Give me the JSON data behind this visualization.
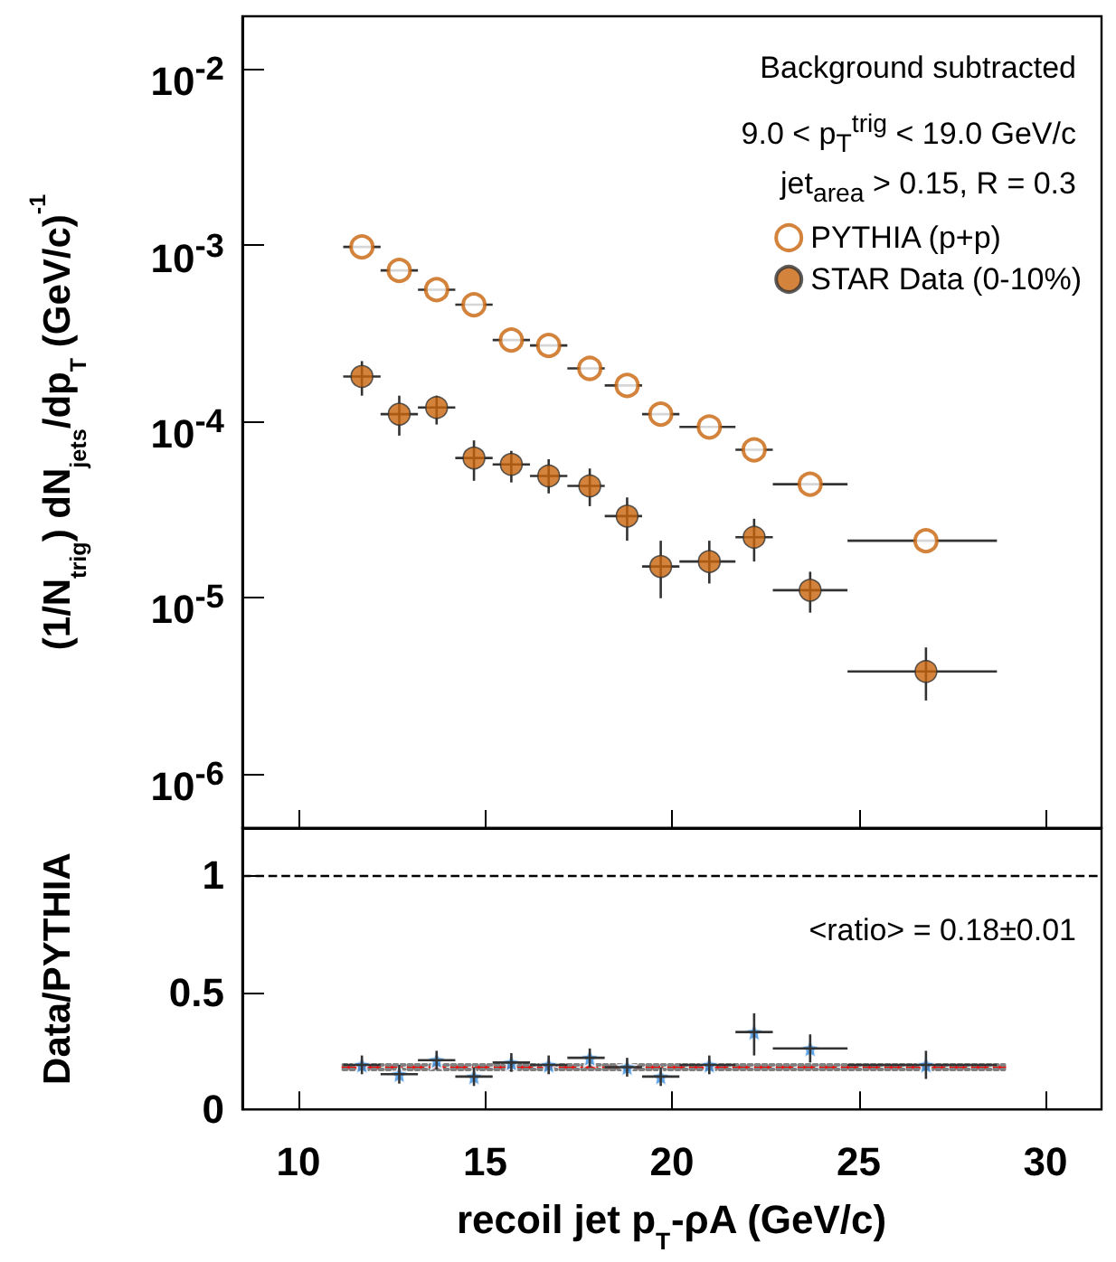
{
  "chart_data": [
    {
      "type": "scatter",
      "ylabel": "(1/N$_{trig}$) dN$_{jets}$/dp$_{T}$ (GeV/c)$^{-1}$",
      "annotations": [
        "Background subtracted",
        "9.0 < p$_{T}$$^{trig}$ < 19.0 GeV/c",
        "jet$_{area}$ > 0.15, R = 0.3"
      ],
      "xlim": [
        8.5,
        31.5
      ],
      "xticks": [
        10,
        15,
        20,
        25,
        30
      ],
      "ylim": [
        4.9e-07,
        0.02
      ],
      "yticks": [
        {
          "value": 1e-06,
          "label": "10$^{-6}$"
        },
        {
          "value": 1e-05,
          "label": "10$^{-5}$"
        },
        {
          "value": 0.0001,
          "label": "10$^{-4}$"
        },
        {
          "value": 0.001,
          "label": "10$^{-3}$"
        },
        {
          "value": 0.01,
          "label": "10$^{-2}$"
        }
      ],
      "log": "y",
      "tick_labels": "y",
      "legend": "top right",
      "grid": false,
      "marker": "circle",
      "x": [
        11.7,
        12.7,
        13.7,
        14.7,
        15.7,
        16.7,
        17.8,
        18.8,
        19.7,
        21.0,
        22.2,
        23.7,
        26.8
      ],
      "series": [
        {
          "name": "PYTHIA (p+p)",
          "color": "#c8640a",
          "values": [
            0.00098,
            0.00072,
            0.00056,
            0.00046,
            0.00029,
            0.00027,
            0.0002,
            0.00016,
            0.00011,
            9.3e-05,
            6.9e-05,
            4.4e-05,
            2.1e-05
          ],
          "xerrors": [
            [
              11.2,
              12.2
            ],
            [
              12.2,
              13.2
            ],
            [
              13.2,
              14.2
            ],
            [
              14.2,
              15.2
            ],
            [
              15.2,
              16.2
            ],
            [
              16.2,
              17.2
            ],
            [
              17.2,
              18.2
            ],
            [
              18.2,
              19.2
            ],
            [
              19.2,
              20.2
            ],
            [
              20.2,
              21.7
            ],
            [
              21.7,
              22.7
            ],
            [
              22.7,
              24.7
            ],
            [
              24.7,
              28.7
            ]
          ]
        },
        {
          "name": "STAR Data (0-10%)",
          "color": "#c8640a",
          "values": [
            0.00018,
            0.00011,
            0.00012,
            6.2e-05,
            5.7e-05,
            4.9e-05,
            4.3e-05,
            2.9e-05,
            1.5e-05,
            1.6e-05,
            2.2e-05,
            1.1e-05,
            3.8e-06
          ],
          "xerrors": [
            [
              11.2,
              12.2
            ],
            [
              12.2,
              13.2
            ],
            [
              13.2,
              14.2
            ],
            [
              14.2,
              15.2
            ],
            [
              15.2,
              16.2
            ],
            [
              16.2,
              17.2
            ],
            [
              17.2,
              18.2
            ],
            [
              18.2,
              19.2
            ],
            [
              19.2,
              20.2
            ],
            [
              20.2,
              21.7
            ],
            [
              21.7,
              22.7
            ],
            [
              22.7,
              24.7
            ],
            [
              24.7,
              28.7
            ]
          ],
          "errors": [
            [
              0.00014,
              0.00022
            ],
            [
              8.3e-05,
              0.00014
            ],
            [
              9.6e-05,
              0.00014
            ],
            [
              4.6e-05,
              7.8e-05
            ],
            [
              4.5e-05,
              6.8e-05
            ],
            [
              3.9e-05,
              6.1e-05
            ],
            [
              3.3e-05,
              5.4e-05
            ],
            [
              2.1e-05,
              3.7e-05
            ],
            [
              9.9e-06,
              2.1e-05
            ],
            [
              1.2e-05,
              2.1e-05
            ],
            [
              1.6e-05,
              2.8e-05
            ],
            [
              8.2e-06,
              1.4e-05
            ],
            [
              2.6e-06,
              5.2e-06
            ]
          ]
        }
      ]
    },
    {
      "type": "scatter",
      "xlabel": "recoil jet p$_{T}$-ρA (GeV/c)",
      "ylabel": "Data/PYTHIA",
      "annotations": [
        "<ratio> = 0.18±0.01"
      ],
      "xlim": [
        8.5,
        31.5
      ],
      "xticks": [
        10,
        15,
        20,
        25,
        30
      ],
      "ylim": [
        0,
        1.2
      ],
      "yticks": [
        0,
        0.5,
        1
      ],
      "grid": false,
      "legend": false,
      "ref_lines": [
        {
          "axis": "y",
          "value": 1,
          "color": "#000000",
          "line_style": "dashed"
        }
      ],
      "series": [
        {
          "color": "#3a8ee0",
          "marker": "star",
          "x": [
            11.7,
            12.7,
            13.7,
            14.7,
            15.7,
            16.7,
            17.8,
            18.8,
            19.7,
            21.0,
            22.2,
            23.7,
            26.8
          ],
          "values": [
            0.19,
            0.15,
            0.21,
            0.14,
            0.2,
            0.19,
            0.22,
            0.18,
            0.14,
            0.19,
            0.33,
            0.26,
            0.19
          ],
          "xerrors": [
            [
              11.2,
              12.2
            ],
            [
              12.2,
              13.2
            ],
            [
              13.2,
              14.2
            ],
            [
              14.2,
              15.2
            ],
            [
              15.2,
              16.2
            ],
            [
              16.2,
              17.2
            ],
            [
              17.2,
              18.2
            ],
            [
              18.2,
              19.2
            ],
            [
              19.2,
              20.2
            ],
            [
              20.2,
              21.7
            ],
            [
              21.7,
              22.7
            ],
            [
              22.7,
              24.7
            ],
            [
              24.7,
              28.7
            ]
          ],
          "errors": [
            0.04,
            0.04,
            0.04,
            0.04,
            0.04,
            0.04,
            0.04,
            0.04,
            0.04,
            0.04,
            [
              0.23,
              0.41
            ],
            [
              0.2,
              0.32
            ],
            [
              0.13,
              0.25
            ]
          ]
        },
        {
          "type": "line",
          "color": "#ff0000",
          "marker": "none",
          "line_style": "dashed",
          "x": [
            11.2,
            28.9
          ],
          "values": [
            0.18,
            0.18
          ]
        },
        {
          "type": "line",
          "color": "#808080",
          "marker": "none",
          "line_style": "dotted",
          "x": [
            11.2,
            28.9
          ],
          "values": [
            0.17,
            0.17
          ]
        },
        {
          "type": "line",
          "color": "#808080",
          "marker": "none",
          "line_style": "dotted",
          "x": [
            11.2,
            28.9
          ],
          "values": [
            0.19,
            0.19
          ]
        }
      ]
    }
  ]
}
